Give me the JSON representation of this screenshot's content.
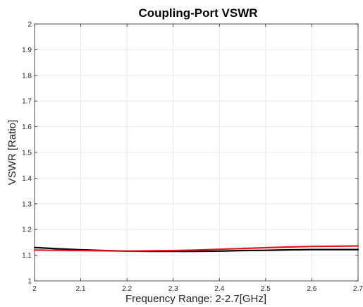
{
  "chart_data": {
    "type": "line",
    "title": "Coupling-Port VSWR",
    "xlabel": "Frequency Range: 2-2.7[GHz]",
    "ylabel": "VSWR [Ratio]",
    "xlim": [
      2,
      2.7
    ],
    "ylim": [
      1,
      2
    ],
    "xticks": [
      "2",
      "2.1",
      "2.2",
      "2.3",
      "2.4",
      "2.5",
      "2.6",
      "2.7"
    ],
    "yticks": [
      "1",
      "1.1",
      "1.2",
      "1.3",
      "1.4",
      "1.5",
      "1.6",
      "1.7",
      "1.8",
      "1.9",
      "2"
    ],
    "grid": true,
    "x": [
      2.0,
      2.05,
      2.1,
      2.15,
      2.2,
      2.25,
      2.3,
      2.35,
      2.4,
      2.45,
      2.5,
      2.55,
      2.6,
      2.65,
      2.7
    ],
    "series": [
      {
        "color": "#000000",
        "values": [
          1.13,
          1.125,
          1.121,
          1.118,
          1.116,
          1.115,
          1.115,
          1.115,
          1.116,
          1.118,
          1.119,
          1.121,
          1.122,
          1.122,
          1.122
        ]
      },
      {
        "color": "#e8141b",
        "values": [
          1.12,
          1.119,
          1.118,
          1.117,
          1.116,
          1.117,
          1.118,
          1.12,
          1.123,
          1.126,
          1.129,
          1.132,
          1.134,
          1.135,
          1.136
        ]
      }
    ]
  }
}
